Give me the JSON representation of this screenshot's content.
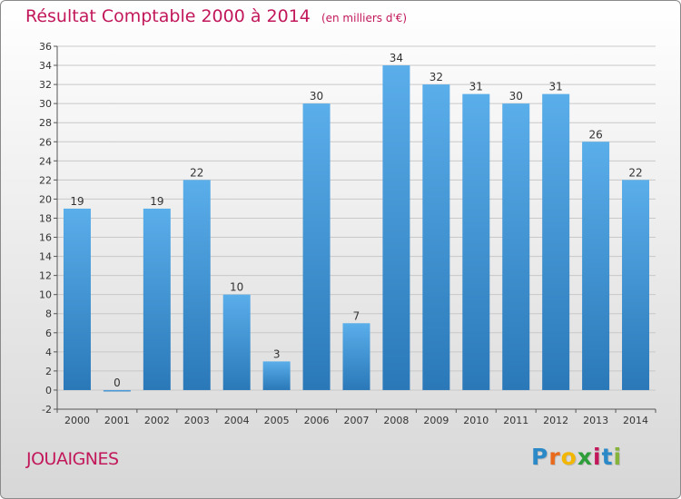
{
  "header": {
    "title": "Résultat Comptable 2000 à 2014",
    "subtitle": "(en milliers d'€)"
  },
  "footer": {
    "commune": "JOUAIGNES",
    "brand_letters": [
      "P",
      "r",
      "o",
      "x",
      "i",
      "t",
      "i"
    ],
    "brand_colors": [
      "#2b89c8",
      "#e86a1a",
      "#f2b705",
      "#2e9e3b",
      "#c2185b",
      "#2b89c8",
      "#86b33a"
    ]
  },
  "colors": {
    "bar_top": "#5aaeea",
    "bar_bottom": "#2a78b8",
    "title": "#c2185b"
  },
  "chart_data": {
    "type": "bar",
    "categories": [
      "2000",
      "2001",
      "2002",
      "2003",
      "2004",
      "2005",
      "2006",
      "2007",
      "2008",
      "2009",
      "2010",
      "2011",
      "2012",
      "2013",
      "2014"
    ],
    "values": [
      19,
      0,
      19,
      22,
      10,
      3,
      30,
      7,
      34,
      32,
      31,
      30,
      31,
      26,
      22
    ],
    "ylim": [
      -2,
      36
    ],
    "yticks": [
      -2,
      0,
      2,
      4,
      6,
      8,
      10,
      12,
      14,
      16,
      18,
      20,
      22,
      24,
      26,
      28,
      30,
      32,
      34,
      36
    ],
    "grid": true,
    "data_labels": true
  }
}
